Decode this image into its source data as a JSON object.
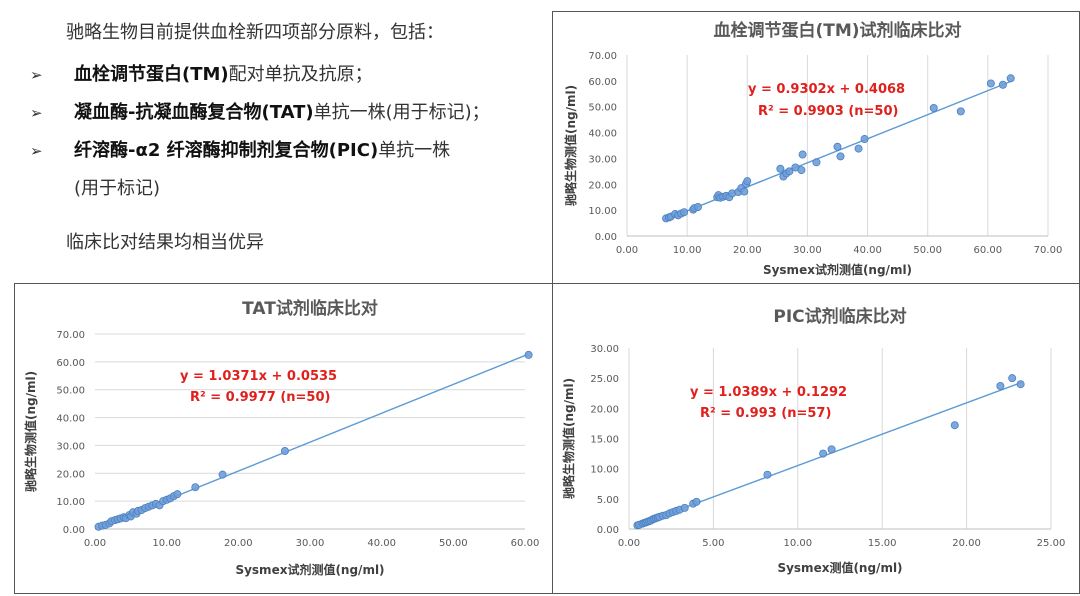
{
  "intro": {
    "lead": "驰略生物目前提供血栓新四项部分原料，包括：",
    "bullets": [
      {
        "bold": "血栓调节蛋白(TM)",
        "rest": "配对单抗及抗原；"
      },
      {
        "bold": "凝血酶-抗凝血酶复合物(TAT)",
        "rest": "单抗一株(用于标记)；"
      },
      {
        "bold": "纤溶酶-α2 纤溶酶抑制剂复合物(PIC)",
        "rest": "单抗一株"
      }
    ],
    "bullet_mark": "➢",
    "bullet3_cont": "(用于标记)",
    "conclusion": "临床比对结果均相当优异"
  },
  "colors": {
    "point": "#6f9fd8",
    "point_stroke": "#4a7fc1",
    "line": "#5b9bd5",
    "eq": "#e0201c",
    "grid": "#d9d9d9",
    "title": "#595959"
  },
  "chart_data": [
    {
      "type": "scatter",
      "title": "血栓调节蛋白(TM)试剂临床比对",
      "xlabel": "Sysmex试剂测值(ng/ml)",
      "ylabel": "驰略生物测值(ng/ml)",
      "xlim": [
        0,
        70
      ],
      "ylim": [
        0,
        70
      ],
      "xticks": [
        "0.00",
        "10.00",
        "20.00",
        "30.00",
        "40.00",
        "50.00",
        "60.00",
        "70.00"
      ],
      "yticks": [
        "0.00",
        "10.00",
        "20.00",
        "30.00",
        "40.00",
        "50.00",
        "60.00",
        "70.00"
      ],
      "grid": "vertical",
      "equation": "y = 0.9302x + 0.4068",
      "r2": "R² = 0.9903 (n=50)",
      "fit": {
        "slope": 0.9302,
        "intercept": 0.4068,
        "x_range": [
          6,
          64
        ]
      },
      "points": [
        [
          6.5,
          6.8
        ],
        [
          7.0,
          7.2
        ],
        [
          7.3,
          7.5
        ],
        [
          8.0,
          8.5
        ],
        [
          8.5,
          8.0
        ],
        [
          9.0,
          8.7
        ],
        [
          9.5,
          9.2
        ],
        [
          11.0,
          10.2
        ],
        [
          11.2,
          10.8
        ],
        [
          11.8,
          11.2
        ],
        [
          15.0,
          15.0
        ],
        [
          15.2,
          15.8
        ],
        [
          15.5,
          14.8
        ],
        [
          16.0,
          15.2
        ],
        [
          16.5,
          15.5
        ],
        [
          17.0,
          15.0
        ],
        [
          17.5,
          16.5
        ],
        [
          18.5,
          17.0
        ],
        [
          19.0,
          18.5
        ],
        [
          19.5,
          17.2
        ],
        [
          19.8,
          20.2
        ],
        [
          20.0,
          21.2
        ],
        [
          25.5,
          26.0
        ],
        [
          26.0,
          23.0
        ],
        [
          26.5,
          24.2
        ],
        [
          27.0,
          25.0
        ],
        [
          28.0,
          26.5
        ],
        [
          29.0,
          25.5
        ],
        [
          29.2,
          31.5
        ],
        [
          31.5,
          28.5
        ],
        [
          35.0,
          34.5
        ],
        [
          35.5,
          30.8
        ],
        [
          38.5,
          33.8
        ],
        [
          39.5,
          37.5
        ],
        [
          51.0,
          49.5
        ],
        [
          55.5,
          48.2
        ],
        [
          60.5,
          59.0
        ],
        [
          62.5,
          58.5
        ],
        [
          63.8,
          61.0
        ]
      ]
    },
    {
      "type": "scatter",
      "title": "TAT试剂临床比对",
      "xlabel": "Sysmex试剂测值(ng/ml)",
      "ylabel": "驰略生物测值(ng/ml)",
      "xlim": [
        0,
        60
      ],
      "ylim": [
        0,
        70
      ],
      "xticks": [
        "0.00",
        "10.00",
        "20.00",
        "30.00",
        "40.00",
        "50.00",
        "60.00"
      ],
      "yticks": [
        "0.00",
        "10.00",
        "20.00",
        "30.00",
        "40.00",
        "50.00",
        "60.00",
        "70.00"
      ],
      "grid": "horizontal",
      "equation": "y = 1.0371x + 0.0535",
      "r2": "R² = 0.9977 (n=50)",
      "fit": {
        "slope": 1.0371,
        "intercept": 0.0535,
        "x_range": [
          0.3,
          60.5
        ]
      },
      "points": [
        [
          0.5,
          0.8
        ],
        [
          1.0,
          1.2
        ],
        [
          1.5,
          1.5
        ],
        [
          2.0,
          2.0
        ],
        [
          2.3,
          2.8
        ],
        [
          2.8,
          3.2
        ],
        [
          3.2,
          3.5
        ],
        [
          3.6,
          3.8
        ],
        [
          4.0,
          4.2
        ],
        [
          4.3,
          3.9
        ],
        [
          4.8,
          5.0
        ],
        [
          5.0,
          4.5
        ],
        [
          5.3,
          6.0
        ],
        [
          5.8,
          5.5
        ],
        [
          6.0,
          6.5
        ],
        [
          6.5,
          6.8
        ],
        [
          7.0,
          7.5
        ],
        [
          7.5,
          8.0
        ],
        [
          8.0,
          8.5
        ],
        [
          8.5,
          9.0
        ],
        [
          9.0,
          8.5
        ],
        [
          9.5,
          10.0
        ],
        [
          10.0,
          10.5
        ],
        [
          10.5,
          11.0
        ],
        [
          11.0,
          11.8
        ],
        [
          11.5,
          12.5
        ],
        [
          14.0,
          15.0
        ],
        [
          17.8,
          19.5
        ],
        [
          26.5,
          28.0
        ],
        [
          60.5,
          62.5
        ]
      ]
    },
    {
      "type": "scatter",
      "title": "PIC试剂临床比对",
      "xlabel": "Sysmex测值(ng/ml)",
      "ylabel": "驰略生物测值(ng/ml)",
      "xlim": [
        0,
        25
      ],
      "ylim": [
        0,
        30
      ],
      "xticks": [
        "0.00",
        "5.00",
        "10.00",
        "15.00",
        "20.00",
        "25.00"
      ],
      "yticks": [
        "0.00",
        "5.00",
        "10.00",
        "15.00",
        "20.00",
        "25.00",
        "30.00"
      ],
      "grid": "vertical",
      "equation": "y = 1.0389x + 0.1292",
      "r2": "R² = 0.993 (n=57)",
      "fit": {
        "slope": 1.0389,
        "intercept": 0.1292,
        "x_range": [
          0.4,
          23.3
        ]
      },
      "points": [
        [
          0.5,
          0.6
        ],
        [
          0.6,
          0.7
        ],
        [
          0.8,
          0.9
        ],
        [
          0.9,
          1.0
        ],
        [
          1.0,
          1.1
        ],
        [
          1.1,
          1.2
        ],
        [
          1.2,
          1.3
        ],
        [
          1.3,
          1.4
        ],
        [
          1.4,
          1.6
        ],
        [
          1.5,
          1.7
        ],
        [
          1.6,
          1.8
        ],
        [
          1.7,
          1.9
        ],
        [
          1.8,
          2.0
        ],
        [
          2.0,
          2.2
        ],
        [
          2.2,
          2.3
        ],
        [
          2.4,
          2.6
        ],
        [
          2.6,
          2.8
        ],
        [
          2.8,
          3.0
        ],
        [
          3.0,
          3.2
        ],
        [
          3.3,
          3.5
        ],
        [
          3.8,
          4.2
        ],
        [
          4.0,
          4.5
        ],
        [
          8.2,
          9.0
        ],
        [
          11.5,
          12.5
        ],
        [
          12.0,
          13.2
        ],
        [
          19.3,
          17.2
        ],
        [
          22.0,
          23.7
        ],
        [
          22.7,
          25.0
        ],
        [
          23.2,
          24.0
        ]
      ]
    }
  ]
}
